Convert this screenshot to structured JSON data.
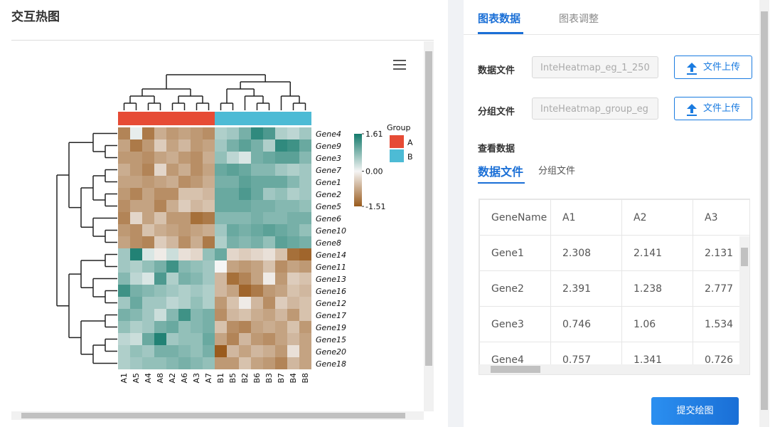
{
  "header": {
    "title": "交互热图"
  },
  "chart_data": {
    "type": "heatmap",
    "columns": [
      "A1",
      "A5",
      "A4",
      "A8",
      "A2",
      "A6",
      "A3",
      "A7",
      "B1",
      "B5",
      "B2",
      "B6",
      "B3",
      "B7",
      "B4",
      "B8"
    ],
    "rows": [
      "Gene4",
      "Gene9",
      "Gene3",
      "Gene7",
      "Gene1",
      "Gene2",
      "Gene5",
      "Gene6",
      "Gene10",
      "Gene8",
      "Gene14",
      "Gene11",
      "Gene13",
      "Gene16",
      "Gene12",
      "Gene17",
      "Gene19",
      "Gene15",
      "Gene20",
      "Gene18"
    ],
    "values": [
      [
        -1.1,
        0.1,
        -1.2,
        -0.7,
        -0.9,
        -0.8,
        -0.9,
        -1.0,
        0.5,
        0.6,
        0.9,
        1.4,
        1.2,
        0.5,
        0.4,
        0.6
      ],
      [
        -0.8,
        -1.2,
        -0.9,
        -0.4,
        -0.8,
        -0.6,
        -0.9,
        -0.8,
        0.6,
        0.9,
        1.1,
        0.9,
        0.5,
        1.4,
        1.3,
        1.0
      ],
      [
        -0.9,
        -0.9,
        -1.0,
        -0.8,
        -0.7,
        -0.9,
        -1.0,
        -0.7,
        0.7,
        0.4,
        0.2,
        0.9,
        1.0,
        1.1,
        1.1,
        0.8
      ],
      [
        -0.7,
        -0.9,
        -1.1,
        -0.3,
        -0.9,
        -0.7,
        -1.0,
        -0.8,
        1.0,
        1.1,
        1.0,
        0.8,
        0.8,
        0.6,
        0.5,
        0.6
      ],
      [
        -0.8,
        -0.8,
        -0.9,
        -0.8,
        -0.7,
        -1.0,
        -0.9,
        -0.7,
        0.9,
        0.9,
        1.1,
        1.0,
        1.0,
        1.0,
        0.8,
        0.6
      ],
      [
        -0.9,
        -1.1,
        -0.8,
        -1.0,
        -1.0,
        -0.5,
        -0.5,
        -0.6,
        1.0,
        1.0,
        1.2,
        1.0,
        0.6,
        0.7,
        0.5,
        0.6
      ],
      [
        -1.0,
        -0.8,
        -0.8,
        -1.1,
        -0.7,
        -0.4,
        -0.6,
        -0.5,
        1.0,
        1.0,
        1.0,
        0.9,
        0.9,
        0.8,
        0.8,
        0.7
      ],
      [
        -1.1,
        -0.3,
        -0.8,
        -0.5,
        -0.9,
        -0.9,
        -1.3,
        -1.2,
        0.8,
        0.8,
        0.8,
        0.9,
        0.8,
        0.8,
        0.9,
        0.9
      ],
      [
        -0.9,
        -1.0,
        -0.5,
        -0.7,
        -0.8,
        -0.9,
        -0.8,
        -0.7,
        0.6,
        1.0,
        0.9,
        1.0,
        1.1,
        1.0,
        0.9,
        0.7
      ],
      [
        -0.8,
        -1.0,
        -1.1,
        -0.4,
        -0.6,
        -1.0,
        -0.7,
        -1.2,
        0.5,
        0.9,
        0.8,
        0.9,
        0.7,
        1.1,
        1.0,
        0.9
      ],
      [
        0.6,
        1.5,
        0.2,
        -0.1,
        0.3,
        -0.2,
        -0.3,
        0.7,
        1.0,
        -0.3,
        -0.4,
        -0.3,
        -0.2,
        -0.5,
        -1.3,
        -1.4
      ],
      [
        0.6,
        0.5,
        0.7,
        0.9,
        1.3,
        0.8,
        0.7,
        0.6,
        0.0,
        -0.8,
        -0.9,
        -0.8,
        -0.5,
        -1.0,
        -0.8,
        -0.9
      ],
      [
        0.8,
        0.4,
        0.2,
        1.2,
        0.5,
        0.9,
        0.8,
        0.6,
        -0.6,
        -1.3,
        -1.1,
        -0.8,
        -0.1,
        -0.9,
        -0.4,
        -0.5
      ],
      [
        1.3,
        0.9,
        0.8,
        0.7,
        0.6,
        0.5,
        0.6,
        0.5,
        -0.6,
        -0.8,
        -1.4,
        -1.2,
        -0.9,
        -0.8,
        -0.5,
        -0.6
      ],
      [
        0.6,
        1.0,
        0.6,
        0.6,
        0.4,
        0.5,
        0.7,
        0.5,
        -0.9,
        -0.5,
        -0.1,
        -0.6,
        -1.0,
        -0.4,
        -0.6,
        -0.5
      ],
      [
        0.9,
        0.8,
        0.6,
        0.3,
        0.8,
        1.3,
        0.8,
        0.9,
        -1.0,
        -0.6,
        -0.5,
        -0.7,
        -0.8,
        -0.6,
        -0.9,
        -0.5
      ],
      [
        0.7,
        0.5,
        0.6,
        0.9,
        1.0,
        0.7,
        0.8,
        0.9,
        -0.5,
        -1.0,
        -1.1,
        -0.8,
        -0.7,
        -0.8,
        -0.5,
        -0.9
      ],
      [
        0.4,
        0.3,
        1.0,
        1.5,
        0.6,
        0.7,
        0.7,
        1.0,
        -0.8,
        -1.1,
        -0.6,
        -0.9,
        -1.0,
        -0.8,
        -0.6,
        -0.8
      ],
      [
        0.5,
        0.7,
        0.6,
        0.9,
        0.9,
        0.8,
        0.7,
        0.9,
        -1.5,
        -0.6,
        -0.8,
        -0.6,
        -0.7,
        -0.9,
        -0.2,
        -0.8
      ],
      [
        0.5,
        0.6,
        0.7,
        0.7,
        0.8,
        0.9,
        0.8,
        0.7,
        -0.9,
        -0.9,
        -0.5,
        -0.8,
        -0.9,
        -1.1,
        -0.6,
        -0.8
      ]
    ],
    "column_groups": [
      "A",
      "A",
      "A",
      "A",
      "A",
      "A",
      "A",
      "A",
      "B",
      "B",
      "B",
      "B",
      "B",
      "B",
      "B",
      "B"
    ],
    "legend": {
      "title": "Group",
      "names": [
        "A",
        "B"
      ],
      "colors": [
        "#e64b35",
        "#4dbbd5"
      ]
    },
    "clim": [
      -1.51,
      1.61
    ],
    "cticks": [
      1.61,
      {
        "value": 0,
        "label": "0.00"
      },
      -1.51
    ],
    "colors": [
      "#995a1c",
      "#f5f5f5",
      "#137a6c"
    ]
  },
  "tabs": [
    "图表数据",
    "图表调整"
  ],
  "form": [
    {
      "label": "数据文件",
      "file": "InteHeatmap_eg_1_250",
      "button": "文件上传"
    },
    {
      "label": "分组文件",
      "file": "InteHeatmap_group_eg",
      "button": "文件上传"
    }
  ],
  "view": {
    "title": "查看数据",
    "tabs": [
      "数据文件",
      "分组文件"
    ]
  },
  "table": {
    "header": [
      "GeneName",
      "A1",
      "A2",
      "A3"
    ],
    "rows": [
      [
        "Gene1",
        2.308,
        2.141,
        2.131
      ],
      [
        "Gene2",
        2.391,
        1.238,
        2.777
      ],
      [
        "Gene3",
        0.746,
        1.06,
        1.534
      ],
      [
        "Gene4",
        0.757,
        1.341,
        0.726
      ]
    ]
  },
  "submit": "提交绘图"
}
